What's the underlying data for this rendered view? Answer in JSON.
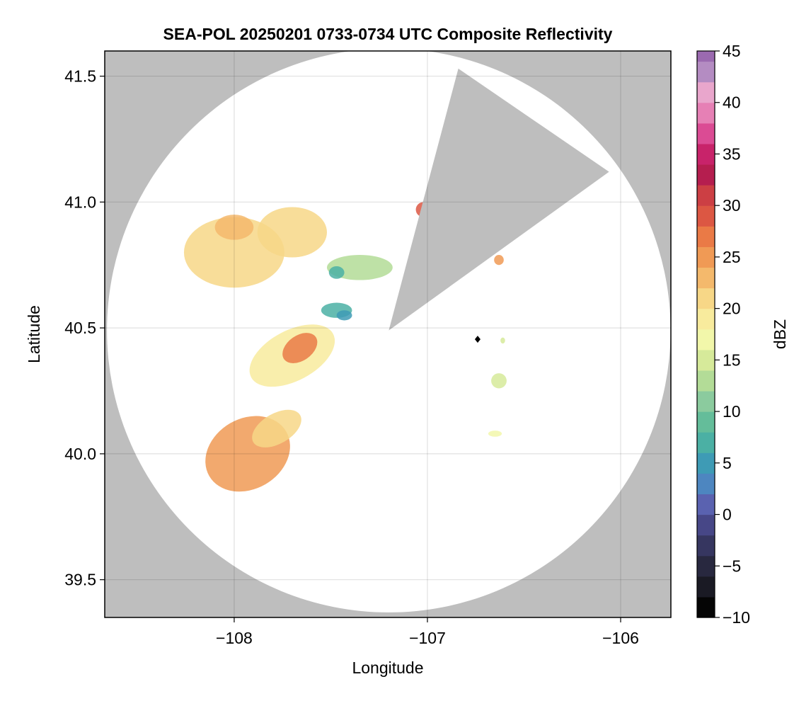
{
  "chart_data": {
    "type": "heatmap",
    "title": "SEA-POL 20250201 0733-0734 UTC Composite Reflectivity",
    "xlabel": "Longitude",
    "ylabel": "Latitude",
    "xlim": [
      -108.67,
      -105.74
    ],
    "ylim": [
      39.35,
      41.6
    ],
    "x_ticks": [
      {
        "value": -108,
        "label": "−108"
      },
      {
        "value": -107,
        "label": "−107"
      },
      {
        "value": -106,
        "label": "−106"
      }
    ],
    "y_ticks": [
      {
        "value": 39.5,
        "label": "39.5"
      },
      {
        "value": 40.0,
        "label": "40.0"
      },
      {
        "value": 40.5,
        "label": "40.5"
      },
      {
        "value": 41.0,
        "label": "41.0"
      },
      {
        "value": 41.5,
        "label": "41.5"
      }
    ],
    "grid": true,
    "background_color": "#bebebe",
    "coverage_color": "#ffffff",
    "radar_site": {
      "lon": -107.2,
      "lat": 40.49
    },
    "coverage_range_deg_lat": 1.12,
    "blocked_sector_points": [
      [
        -107.2,
        40.49
      ],
      [
        -106.84,
        41.53
      ],
      [
        -106.06,
        41.12
      ],
      [
        -107.2,
        40.49
      ]
    ],
    "marker": {
      "lon": -106.74,
      "lat": 40.455,
      "color": "#000000"
    },
    "echoes": [
      {
        "lon": -107.93,
        "lat": 40.0,
        "rx": 0.23,
        "ry": 0.14,
        "rot": -30,
        "dbz": 25
      },
      {
        "lon": -107.78,
        "lat": 40.1,
        "rx": 0.14,
        "ry": 0.06,
        "rot": -30,
        "dbz": 21
      },
      {
        "lon": -107.7,
        "lat": 40.39,
        "rx": 0.24,
        "ry": 0.1,
        "rot": -28,
        "dbz": 19
      },
      {
        "lon": -107.66,
        "lat": 40.42,
        "rx": 0.1,
        "ry": 0.05,
        "rot": -35,
        "dbz": 27
      },
      {
        "lon": -108.0,
        "lat": 40.8,
        "rx": 0.26,
        "ry": 0.14,
        "rot": 0,
        "dbz": 21
      },
      {
        "lon": -107.7,
        "lat": 40.88,
        "rx": 0.18,
        "ry": 0.1,
        "rot": 0,
        "dbz": 20
      },
      {
        "lon": -108.0,
        "lat": 40.9,
        "rx": 0.1,
        "ry": 0.05,
        "rot": 0,
        "dbz": 23
      },
      {
        "lon": -107.35,
        "lat": 40.74,
        "rx": 0.17,
        "ry": 0.05,
        "rot": 0,
        "dbz": 13
      },
      {
        "lon": -107.47,
        "lat": 40.72,
        "rx": 0.04,
        "ry": 0.025,
        "rot": 0,
        "dbz": 7
      },
      {
        "lon": -107.47,
        "lat": 40.57,
        "rx": 0.08,
        "ry": 0.03,
        "rot": 0,
        "dbz": 7
      },
      {
        "lon": -107.43,
        "lat": 40.55,
        "rx": 0.04,
        "ry": 0.02,
        "rot": 0,
        "dbz": 4
      },
      {
        "lon": -107.02,
        "lat": 40.97,
        "rx": 0.04,
        "ry": 0.03,
        "rot": 0,
        "dbz": 28
      },
      {
        "lon": -106.63,
        "lat": 40.77,
        "rx": 0.025,
        "ry": 0.02,
        "rot": 0,
        "dbz": 25
      },
      {
        "lon": -106.63,
        "lat": 40.29,
        "rx": 0.04,
        "ry": 0.03,
        "rot": 0,
        "dbz": 14
      },
      {
        "lon": -106.65,
        "lat": 40.08,
        "rx": 0.035,
        "ry": 0.012,
        "rot": 0,
        "dbz": 17
      },
      {
        "lon": -106.61,
        "lat": 40.45,
        "rx": 0.012,
        "ry": 0.012,
        "rot": 0,
        "dbz": 14
      }
    ],
    "colorbar": {
      "label": "dBZ",
      "min": -10,
      "max": 45,
      "step": 2,
      "ticks": [
        {
          "value": -10,
          "label": "−10"
        },
        {
          "value": -5,
          "label": "−5"
        },
        {
          "value": 0,
          "label": "0"
        },
        {
          "value": 5,
          "label": "5"
        },
        {
          "value": 10,
          "label": "10"
        },
        {
          "value": 15,
          "label": "15"
        },
        {
          "value": 20,
          "label": "20"
        },
        {
          "value": 25,
          "label": "25"
        },
        {
          "value": 30,
          "label": "30"
        },
        {
          "value": 35,
          "label": "35"
        },
        {
          "value": 40,
          "label": "40"
        },
        {
          "value": 45,
          "label": "45"
        }
      ],
      "colors": [
        "#050505",
        "#1a1a24",
        "#28283f",
        "#363660",
        "#474787",
        "#5a62b0",
        "#4d86c0",
        "#3e9bb5",
        "#4bb0a4",
        "#64bd9a",
        "#8bcb9e",
        "#b3dc97",
        "#d6ea9a",
        "#f2f7aa",
        "#f8eb9d",
        "#f7d787",
        "#f4b96c",
        "#f09a55",
        "#ea7a46",
        "#dc5743",
        "#cc3f44",
        "#b51e4f",
        "#c8236a",
        "#db4b94",
        "#e680b5",
        "#e9a6cc",
        "#b48cc2",
        "#9b6ab0",
        "#7c4a99",
        "#5d2c7e",
        "#3f1560"
      ]
    }
  }
}
